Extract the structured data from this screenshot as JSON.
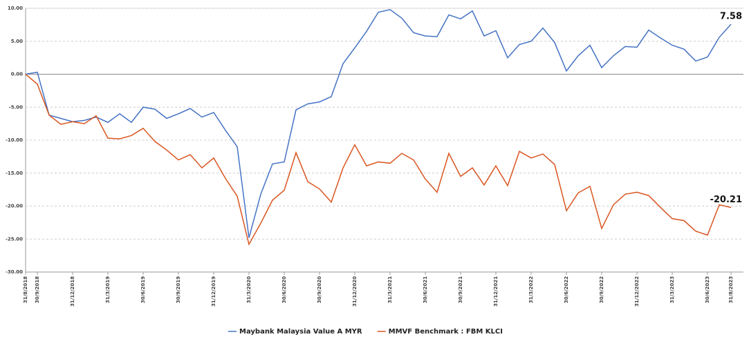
{
  "chart_data": {
    "type": "line",
    "categories": [
      "31/8/2018",
      "30/9/2018",
      null,
      null,
      "31/12/2018",
      null,
      null,
      "31/3/2019",
      null,
      null,
      "30/6/2019",
      null,
      null,
      "30/9/2019",
      null,
      null,
      "31/12/2019",
      null,
      null,
      "31/3/2020",
      null,
      null,
      "30/6/2020",
      null,
      null,
      "30/9/2020",
      null,
      null,
      "31/12/2020",
      null,
      null,
      "31/3/2021",
      null,
      null,
      "30/6/2021",
      null,
      null,
      "30/9/2021",
      null,
      null,
      "31/12/2021",
      null,
      null,
      "31/3/2022",
      null,
      null,
      "30/6/2022",
      null,
      null,
      "30/9/2022",
      null,
      null,
      "31/12/2022",
      null,
      null,
      "31/3/2023",
      null,
      null,
      "30/6/2023",
      null,
      "31/8/2023"
    ],
    "series": [
      {
        "name": "Maybank Malaysia Value A MYR",
        "color": "#4472c4",
        "values": [
          0,
          0.3,
          -6.2,
          -6.7,
          -7.2,
          -7.0,
          -6.5,
          -7.3,
          -6.0,
          -7.3,
          -5.0,
          -5.3,
          -6.7,
          -6.0,
          -5.2,
          -6.5,
          -5.8,
          -8.5,
          -11.0,
          -24.8,
          -18.2,
          -13.6,
          -13.3,
          -5.4,
          -4.5,
          -4.2,
          -3.4,
          1.6,
          4.0,
          6.5,
          9.4,
          9.8,
          8.5,
          6.3,
          5.8,
          5.7,
          9.0,
          8.4,
          9.6,
          5.8,
          6.6,
          2.5,
          4.5,
          5.0,
          7.0,
          4.8,
          0.5,
          2.8,
          4.4,
          1.0,
          2.8,
          4.2,
          4.1,
          6.7,
          5.5,
          4.4,
          3.8,
          2.0,
          2.6,
          5.6,
          7.58
        ]
      },
      {
        "name": "MMVF Benchmark : FBM KLCI",
        "color": "#d9541e",
        "values": [
          0,
          -1.5,
          -6.2,
          -7.6,
          -7.2,
          -7.5,
          -6.3,
          -9.7,
          -9.8,
          -9.3,
          -8.2,
          -10.2,
          -11.5,
          -13.0,
          -12.2,
          -14.2,
          -12.7,
          -15.8,
          -18.5,
          -25.8,
          -22.6,
          -19.1,
          -17.6,
          -11.9,
          -16.3,
          -17.4,
          -19.4,
          -14.2,
          -10.7,
          -13.9,
          -13.3,
          -13.5,
          -12.0,
          -13.0,
          -15.9,
          -17.9,
          -12.0,
          -15.5,
          -14.2,
          -16.8,
          -13.9,
          -16.9,
          -11.7,
          -12.7,
          -12.1,
          -13.7,
          -20.7,
          -18.0,
          -17.0,
          -23.4,
          -19.8,
          -18.2,
          -17.9,
          -18.4,
          -20.2,
          -21.9,
          -22.2,
          -23.8,
          -24.4,
          -19.8,
          -20.21
        ]
      }
    ],
    "ylim": [
      -30,
      10
    ],
    "yticks": [
      {
        "value": 10,
        "label": "10.00"
      },
      {
        "value": 5,
        "label": "5.00"
      },
      {
        "value": 0,
        "label": "0.00"
      },
      {
        "value": -5,
        "label": "-5.00"
      },
      {
        "value": -10,
        "label": "-10.00"
      },
      {
        "value": -15,
        "label": "-15.00"
      },
      {
        "value": -20,
        "label": "-20.00"
      },
      {
        "value": -25,
        "label": "-25.00"
      },
      {
        "value": -30,
        "label": "-30.00"
      }
    ],
    "grid": true,
    "legend": "bottom"
  }
}
